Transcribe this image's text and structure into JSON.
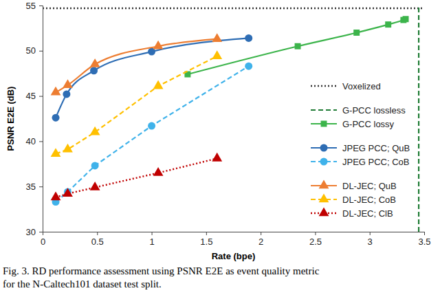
{
  "chart_data": {
    "type": "line",
    "x_label": "Rate (bpe)",
    "y_label": "PSNR E2E (dB)",
    "caption": [
      "Fig. 3. RD performance assessment using PSNR E2E as event quality metric",
      "for the N-Caltech101 dataset test split."
    ],
    "xlim": [
      0,
      3.5
    ],
    "xticks": [
      0,
      0.5,
      1,
      1.5,
      2,
      2.5,
      3,
      3.5
    ],
    "ylim": [
      30,
      55
    ],
    "yticks": [
      30,
      35,
      40,
      45,
      50,
      55
    ],
    "grid": false,
    "legend": "right",
    "series": [
      {
        "name": "Voxelized",
        "color": "#333333",
        "line_style": "dotted",
        "marker": "none",
        "x": [
          0,
          3.5
        ],
        "values": [
          54.7,
          54.7
        ]
      },
      {
        "name": "G-PCC lossless",
        "color": "#1e7b34",
        "line_style": "dashed",
        "marker": "none",
        "x": [
          3.45,
          3.45
        ],
        "values": [
          30,
          55
        ]
      },
      {
        "name": "G-PCC lossy",
        "color": "#3cb44b",
        "line_style": "solid",
        "marker": "square",
        "x": [
          1.33,
          2.34,
          2.88,
          3.17,
          3.31,
          3.33
        ],
        "values": [
          47.4,
          50.5,
          52.0,
          52.9,
          53.4,
          53.5
        ]
      },
      {
        "name": "JPEG PCC; QuB",
        "color": "#2e6db4",
        "line_style": "solid",
        "marker": "circle",
        "x": [
          0.12,
          0.22,
          0.47,
          1.0,
          1.89
        ],
        "values": [
          42.6,
          45.2,
          47.8,
          49.9,
          51.4
        ]
      },
      {
        "name": "JPEG PCC; CoB",
        "color": "#3fb2ea",
        "line_style": "dashed",
        "marker": "circle",
        "x": [
          0.12,
          0.23,
          0.48,
          1.0,
          1.89
        ],
        "values": [
          33.3,
          34.4,
          37.3,
          41.7,
          48.3
        ]
      },
      {
        "name": "DL-JEC; QuB",
        "color": "#ed7d31",
        "line_style": "solid",
        "marker": "triangle",
        "x": [
          0.12,
          0.23,
          0.48,
          1.06,
          1.6
        ],
        "values": [
          45.4,
          46.2,
          48.5,
          50.5,
          51.3
        ]
      },
      {
        "name": "DL-JEC; CoB",
        "color": "#ffc000",
        "line_style": "dashed",
        "marker": "triangle",
        "x": [
          0.12,
          0.23,
          0.48,
          1.06,
          1.6
        ],
        "values": [
          38.6,
          39.1,
          41.0,
          46.1,
          49.4
        ]
      },
      {
        "name": "DL-JEC; ClB",
        "color": "#c00000",
        "line_style": "dotted",
        "marker": "triangle",
        "x": [
          0.12,
          0.23,
          0.48,
          1.06,
          1.6
        ],
        "values": [
          33.8,
          34.2,
          34.9,
          36.5,
          38.1
        ]
      }
    ]
  }
}
